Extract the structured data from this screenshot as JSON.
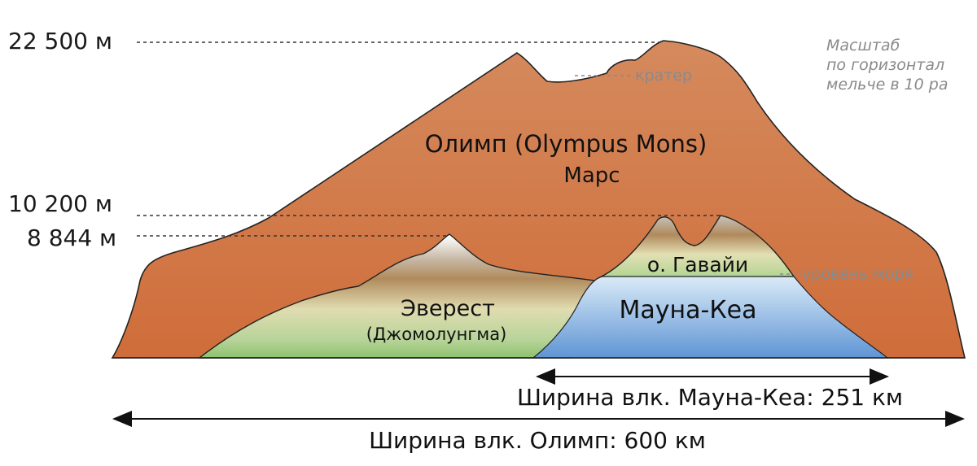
{
  "altitudes": {
    "olympus": "22 500 м",
    "hawaii_base": "10 200 м",
    "everest": "8 844 м"
  },
  "scale_note": {
    "line1": "Масштаб",
    "line2": "по горизонтал",
    "line3": "мельче в 10 ра"
  },
  "labels": {
    "crater": "кратер",
    "olympus_name": "Олимп (Olympus Mons)",
    "olympus_planet": "Марс",
    "hawaii": "о. Гавайи",
    "sea_level": "уровень моря",
    "everest_name": "Эверест",
    "everest_alt_name": "(Джомолунгма)",
    "mauna_kea": "Мауна-Кеа"
  },
  "widths": {
    "mauna_kea": "Ширина влк. Мауна-Кеа: 251 км",
    "olympus": "Ширина влк. Олимп: 600 км"
  },
  "colors": {
    "mars": "#d97f53",
    "ocean_top": "#c8e4f6",
    "ocean_bottom": "#5a90d0",
    "outline": "#222222"
  }
}
